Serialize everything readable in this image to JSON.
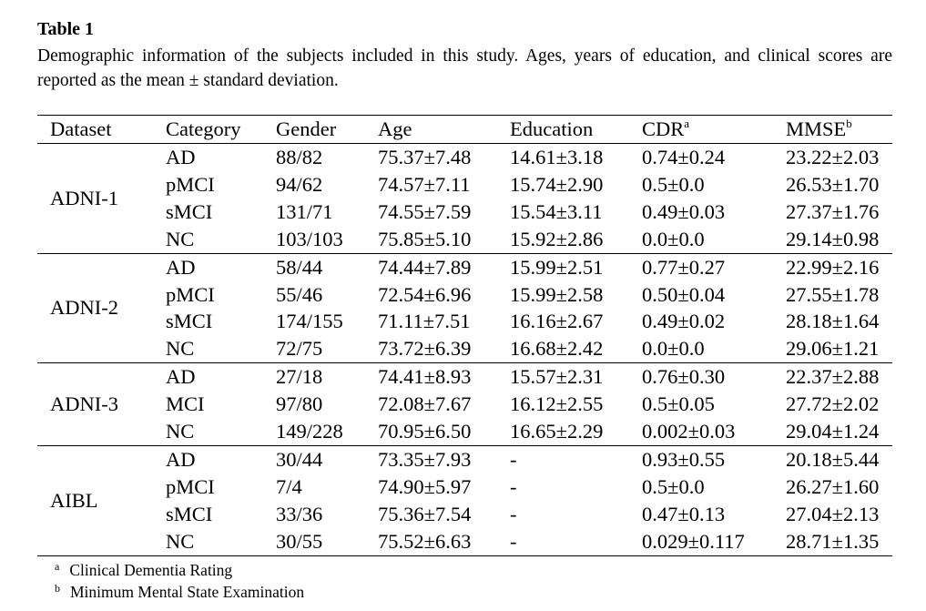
{
  "title": "Table 1",
  "caption": "Demographic information of the subjects included in this study.  Ages, years of education, and clinical scores are reported as the mean ± standard deviation.",
  "header": {
    "dataset": "Dataset",
    "category": "Category",
    "gender": "Gender",
    "age": "Age",
    "education": "Education",
    "cdr": "CDR",
    "cdr_mark": "a",
    "mmse": "MMSE",
    "mmse_mark": "b"
  },
  "groups": [
    {
      "dataset": "ADNI-1",
      "rows": [
        {
          "category": "AD",
          "gender": "88/82",
          "age": "75.37±7.48",
          "education": "14.61±3.18",
          "cdr": "0.74±0.24",
          "mmse": "23.22±2.03"
        },
        {
          "category": "pMCI",
          "gender": "94/62",
          "age": "74.57±7.11",
          "education": "15.74±2.90",
          "cdr": "0.5±0.0",
          "mmse": "26.53±1.70"
        },
        {
          "category": "sMCI",
          "gender": "131/71",
          "age": "74.55±7.59",
          "education": "15.54±3.11",
          "cdr": "0.49±0.03",
          "mmse": "27.37±1.76"
        },
        {
          "category": "NC",
          "gender": "103/103",
          "age": "75.85±5.10",
          "education": "15.92±2.86",
          "cdr": "0.0±0.0",
          "mmse": "29.14±0.98"
        }
      ]
    },
    {
      "dataset": "ADNI-2",
      "rows": [
        {
          "category": "AD",
          "gender": "58/44",
          "age": "74.44±7.89",
          "education": "15.99±2.51",
          "cdr": "0.77±0.27",
          "mmse": "22.99±2.16"
        },
        {
          "category": "pMCI",
          "gender": "55/46",
          "age": "72.54±6.96",
          "education": "15.99±2.58",
          "cdr": "0.50±0.04",
          "mmse": "27.55±1.78"
        },
        {
          "category": "sMCI",
          "gender": "174/155",
          "age": "71.11±7.51",
          "education": "16.16±2.67",
          "cdr": "0.49±0.02",
          "mmse": "28.18±1.64"
        },
        {
          "category": "NC",
          "gender": "72/75",
          "age": "73.72±6.39",
          "education": "16.68±2.42",
          "cdr": "0.0±0.0",
          "mmse": "29.06±1.21"
        }
      ]
    },
    {
      "dataset": "ADNI-3",
      "rows": [
        {
          "category": "AD",
          "gender": "27/18",
          "age": "74.41±8.93",
          "education": "15.57±2.31",
          "cdr": "0.76±0.30",
          "mmse": "22.37±2.88"
        },
        {
          "category": "MCI",
          "gender": "97/80",
          "age": "72.08±7.67",
          "education": "16.12±2.55",
          "cdr": "0.5±0.05",
          "mmse": "27.72±2.02"
        },
        {
          "category": "NC",
          "gender": "149/228",
          "age": "70.95±6.50",
          "education": "16.65±2.29",
          "cdr": "0.002±0.03",
          "mmse": "29.04±1.24"
        }
      ]
    },
    {
      "dataset": "AIBL",
      "rows": [
        {
          "category": "AD",
          "gender": "30/44",
          "age": "73.35±7.93",
          "education": "-",
          "cdr": "0.93±0.55",
          "mmse": "20.18±5.44"
        },
        {
          "category": "pMCI",
          "gender": "7/4",
          "age": "74.90±5.97",
          "education": "-",
          "cdr": "0.5±0.0",
          "mmse": "26.27±1.60"
        },
        {
          "category": "sMCI",
          "gender": "33/36",
          "age": "75.36±7.54",
          "education": "-",
          "cdr": "0.47±0.13",
          "mmse": "27.04±2.13"
        },
        {
          "category": "NC",
          "gender": "30/55",
          "age": "75.52±6.63",
          "education": "-",
          "cdr": "0.029±0.117",
          "mmse": "28.71±1.35"
        }
      ]
    }
  ],
  "footnotes": [
    {
      "mark": "a",
      "text": "Clinical Dementia Rating"
    },
    {
      "mark": "b",
      "text": "Minimum Mental State Examination"
    }
  ]
}
